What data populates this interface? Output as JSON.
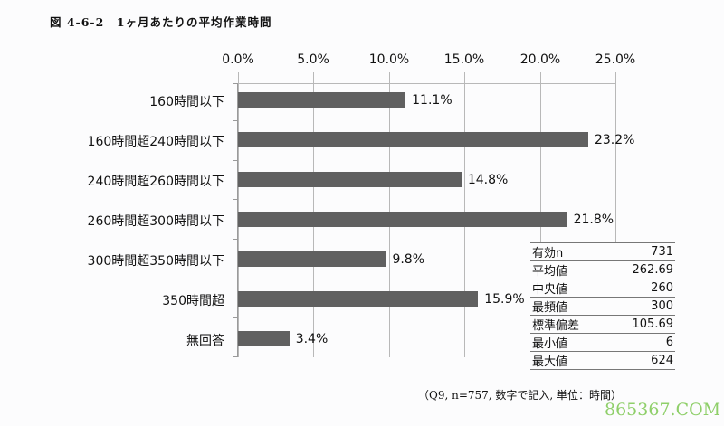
{
  "title": "図 4-6-2　1ヶ月あたりの平均作業時間",
  "chart_data": {
    "type": "bar",
    "orientation": "horizontal",
    "title": "図 4-6-2　1ヶ月あたりの平均作業時間",
    "categories": [
      "160時間以下",
      "160時間超240時間以下",
      "240時間超260時間以下",
      "260時間超300時間以下",
      "300時間超350時間以下",
      "350時間超",
      "無回答"
    ],
    "values": [
      11.1,
      23.2,
      14.8,
      21.8,
      9.8,
      15.9,
      3.4
    ],
    "value_labels": [
      "11.1%",
      "23.2%",
      "14.8%",
      "21.8%",
      "9.8%",
      "15.9%",
      "3.4%"
    ],
    "xlabel": "",
    "ylabel": "",
    "xlim": [
      0,
      25
    ],
    "x_ticks": [
      "0.0%",
      "5.0%",
      "10.0%",
      "15.0%",
      "20.0%",
      "25.0%"
    ],
    "x_axis_position": "top",
    "grid": true,
    "bar_color": "#606060",
    "legend": null
  },
  "stats_table": [
    {
      "label": "有効n",
      "value": "731"
    },
    {
      "label": "平均値",
      "value": "262.69"
    },
    {
      "label": "中央値",
      "value": "260"
    },
    {
      "label": "最頻値",
      "value": "300"
    },
    {
      "label": "標準偏差",
      "value": "105.69"
    },
    {
      "label": "最小値",
      "value": "6"
    },
    {
      "label": "最大値",
      "value": "624"
    }
  ],
  "note": "（Q9, n=757, 数字で記入, 単位：時間）",
  "watermark": "865367.COM"
}
